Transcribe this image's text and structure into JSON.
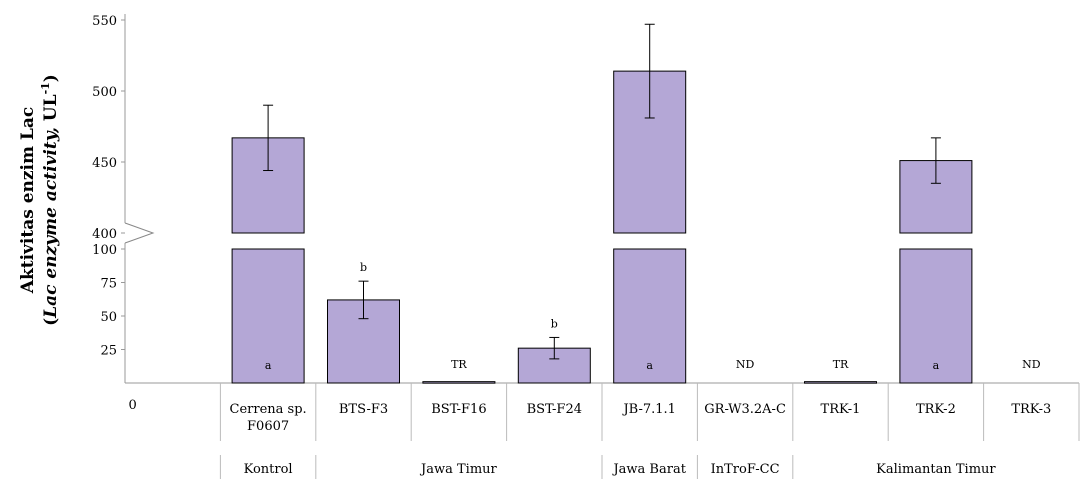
{
  "chart_data": {
    "type": "bar",
    "ylabel_line1": "Aktivitas enzim Lac",
    "ylabel_line2_open": "(",
    "ylabel_line2_italic": "Lac enzyme activity,",
    "ylabel_line2_unit": " UL",
    "ylabel_line2_sup": "-1",
    "ylabel_line2_close": ")",
    "x_origin_label": "0",
    "broken_axis": true,
    "y_ticks_lower": [
      "25",
      "50",
      "75",
      "100"
    ],
    "y_ticks_upper": [
      "400",
      "450",
      "500",
      "550"
    ],
    "categories": [
      "Cerrena sp.|F0607",
      "BTS-F3",
      "BST-F16",
      "BST-F24",
      "JB-7.1.1",
      "GR-W3.2A-C",
      "TRK-1",
      "TRK-2",
      "TRK-3"
    ],
    "values": [
      467,
      62,
      1,
      26,
      514,
      0,
      1,
      451,
      0
    ],
    "errors": [
      23,
      14,
      0,
      8,
      33,
      0,
      0,
      16,
      0
    ],
    "labels": [
      "a",
      "b",
      "TR",
      "b",
      "a",
      "ND",
      "TR",
      "a",
      "ND"
    ],
    "groups": [
      {
        "name": "Kontrol",
        "span": 1
      },
      {
        "name": "Jawa Timur",
        "span": 3
      },
      {
        "name": "Jawa Barat",
        "span": 1
      },
      {
        "name": "InTroF-CC",
        "span": 1
      },
      {
        "name": "Kalimantan Timur",
        "span": 3
      }
    ],
    "bar_color": "#b4a7d6",
    "bar_stroke": "#000000"
  }
}
